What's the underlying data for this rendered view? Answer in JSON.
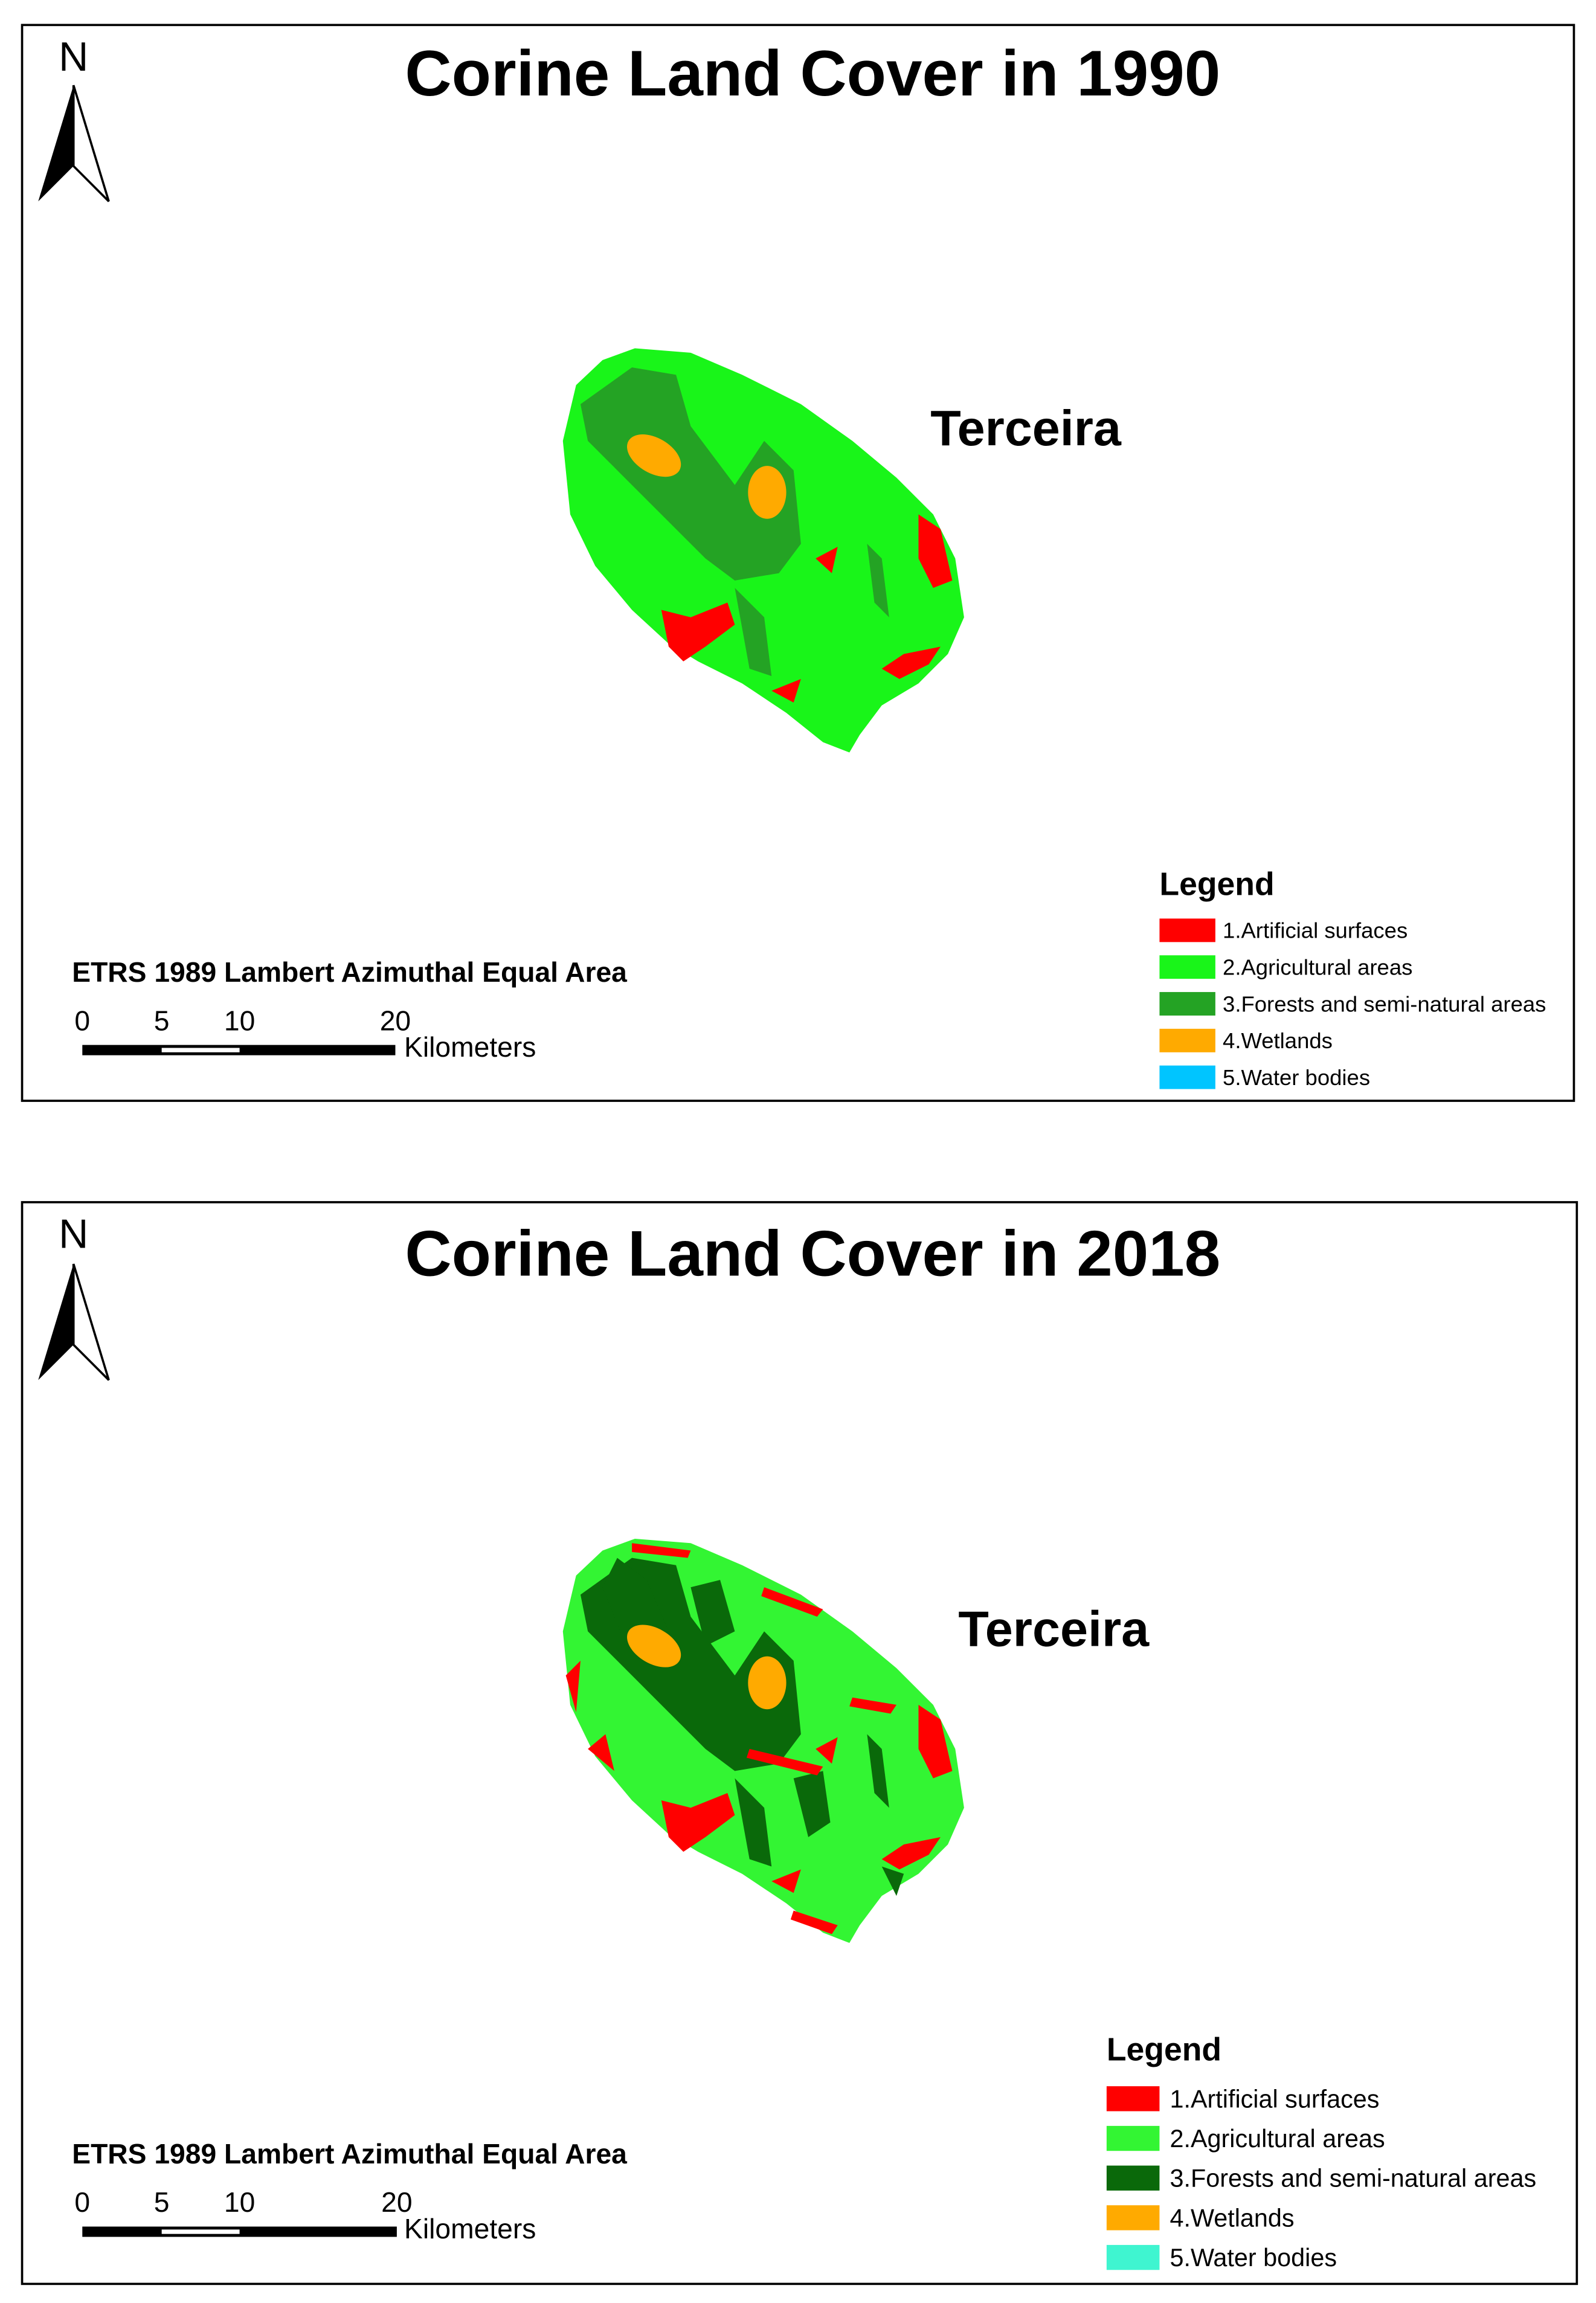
{
  "maps": [
    {
      "title": "Corine Land Cover in 1990",
      "north": "N",
      "place": "Terceira",
      "legend": {
        "title": "Legend",
        "items": [
          {
            "label": "1.Artificial surfaces",
            "color": "#ff0000"
          },
          {
            "label": "2.Agricultural areas",
            "color": "#19f519"
          },
          {
            "label": "3.Forests and semi-natural areas",
            "color": "#24a324"
          },
          {
            "label": "4.Wetlands",
            "color": "#ffaa00"
          },
          {
            "label": "5.Water bodies",
            "color": "#00c5ff"
          }
        ]
      },
      "projection": "ETRS 1989 Lambert Azimuthal Equal Area",
      "scale": {
        "labels": [
          "0",
          "5",
          "10",
          "20"
        ],
        "unit": "Kilometers"
      }
    },
    {
      "title": "Corine Land Cover in 2018",
      "north": "N",
      "place": "Terceira",
      "legend": {
        "title": "Legend",
        "items": [
          {
            "label": "1.Artificial surfaces",
            "color": "#ff0000"
          },
          {
            "label": "2.Agricultural areas",
            "color": "#33f533"
          },
          {
            "label": "3.Forests and semi-natural areas",
            "color": "#0a690a"
          },
          {
            "label": "4.Wetlands",
            "color": "#ffaa00"
          },
          {
            "label": "5.Water bodies",
            "color": "#3ff5d0"
          }
        ]
      },
      "projection": "ETRS 1989 Lambert Azimuthal Equal Area",
      "scale": {
        "labels": [
          "0",
          "5",
          "10",
          "20"
        ],
        "unit": "Kilometers"
      }
    }
  ]
}
